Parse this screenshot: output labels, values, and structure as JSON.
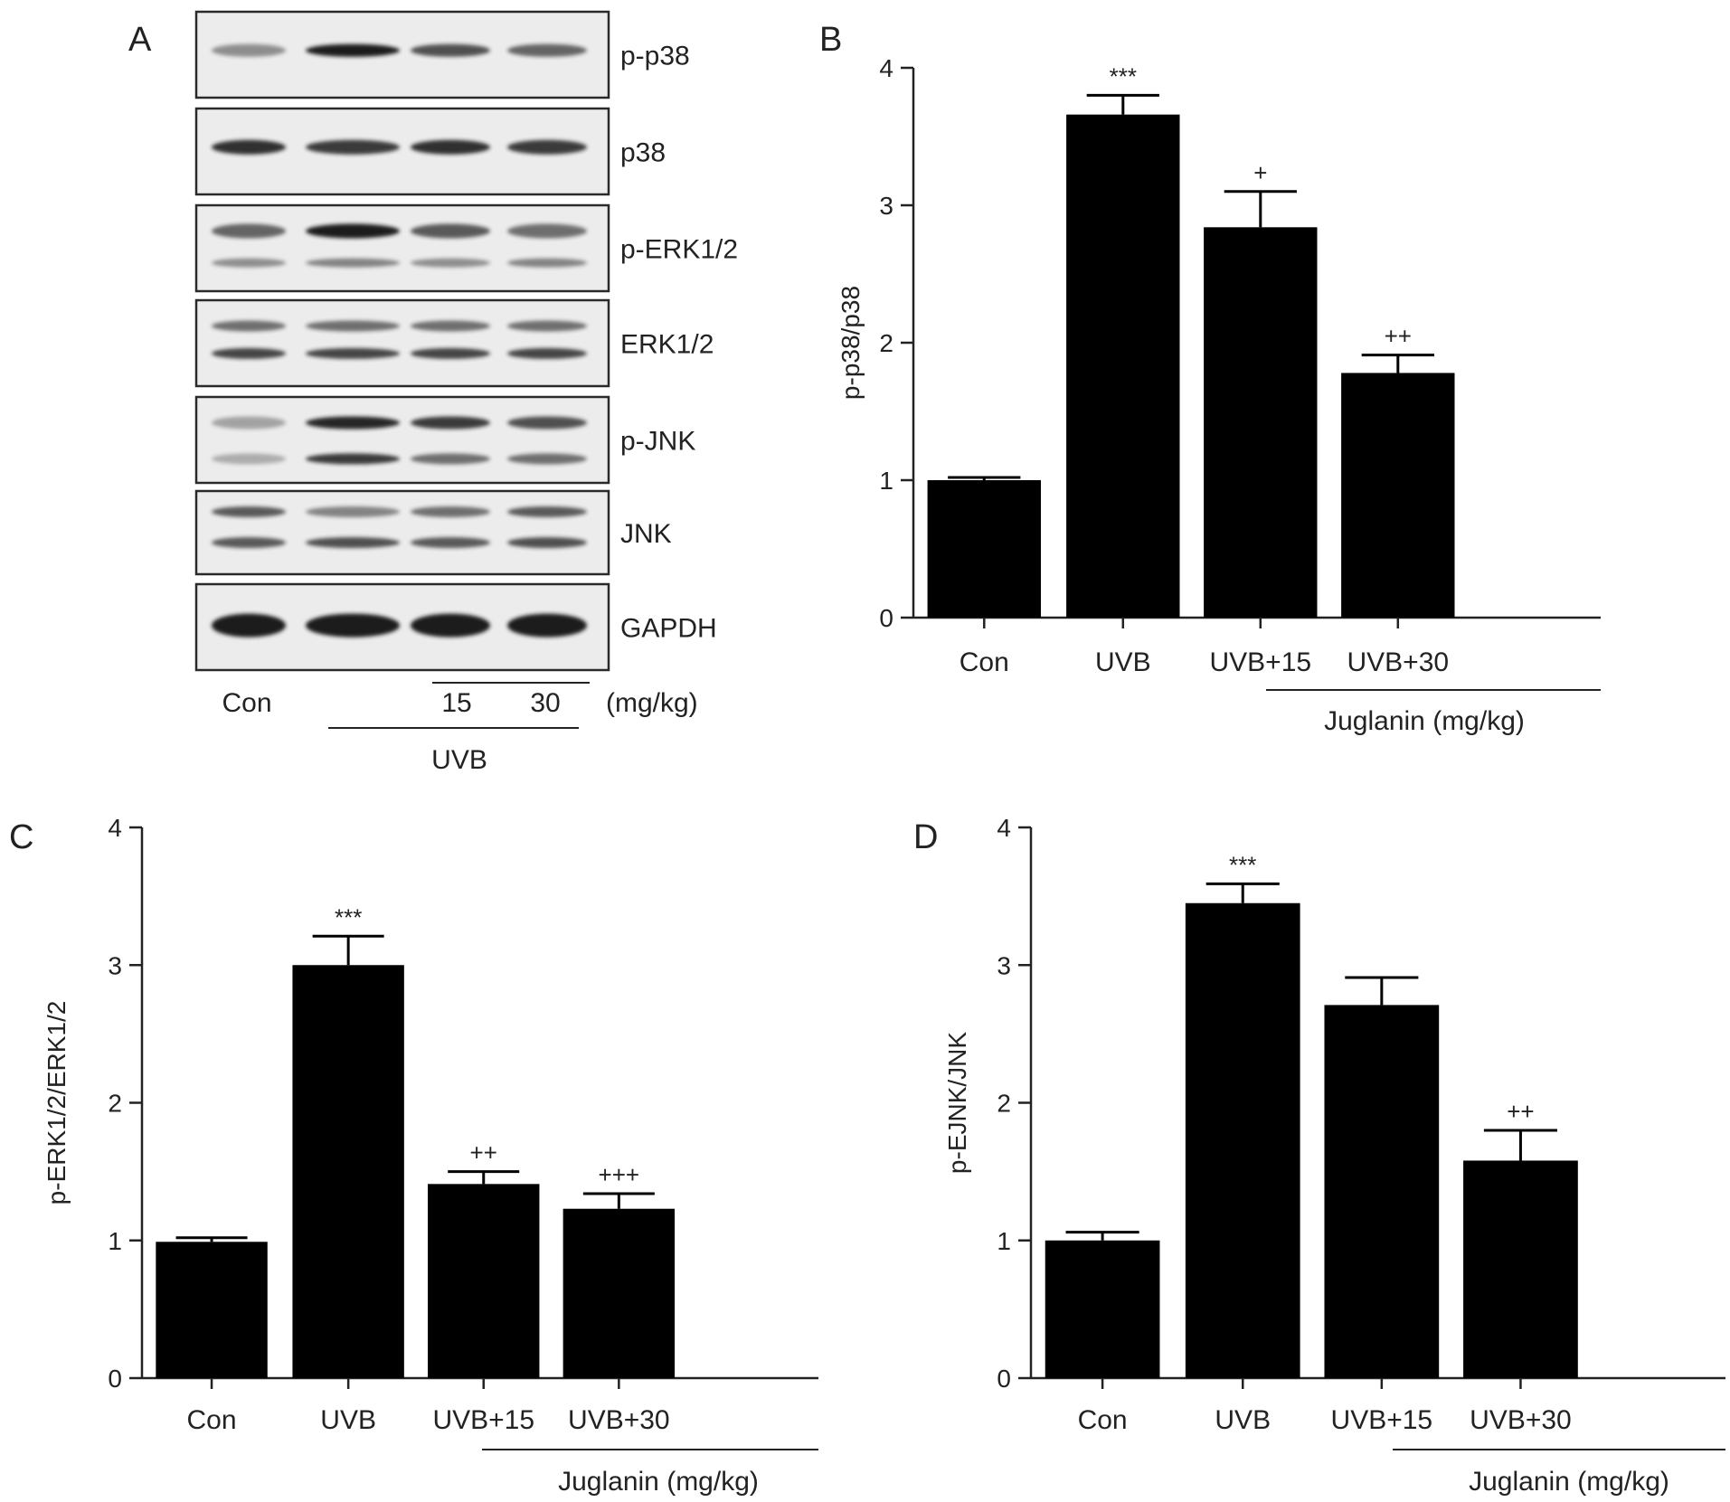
{
  "blot": {
    "panel_label": "A",
    "proteins": [
      "p-p38",
      "p38",
      "p-ERK1/2",
      "ERK1/2",
      "p-JNK",
      "JNK",
      "GAPDH"
    ],
    "lane_labels": {
      "control": "Con",
      "dose1": "15",
      "dose2": "30",
      "unit": "(mg/kg)",
      "group": "UVB"
    }
  },
  "chart_data": [
    {
      "panel_label": "B",
      "type": "bar",
      "categories": [
        "Con",
        "UVB",
        "UVB+15",
        "UVB+30"
      ],
      "values": [
        1.0,
        3.66,
        2.84,
        1.78
      ],
      "errors": [
        0.02,
        0.14,
        0.26,
        0.13
      ],
      "significance": [
        "",
        "***",
        "+",
        "++"
      ],
      "group_label": "Juglanin (mg/kg)",
      "xlabel": "",
      "ylabel": "p-p38/p38",
      "ylim": [
        0,
        4
      ],
      "yticks": [
        "0",
        "1",
        "2",
        "3",
        "4"
      ],
      "bar_color": "#000000",
      "grid": false
    },
    {
      "panel_label": "C",
      "type": "bar",
      "categories": [
        "Con",
        "UVB",
        "UVB+15",
        "UVB+30"
      ],
      "values": [
        0.99,
        3.0,
        1.41,
        1.23
      ],
      "errors": [
        0.03,
        0.21,
        0.09,
        0.11
      ],
      "significance": [
        "",
        "***",
        "++",
        "+++"
      ],
      "group_label": "Juglanin (mg/kg)",
      "xlabel": "",
      "ylabel": "p-ERK1/2/ERK1/2",
      "ylim": [
        0,
        4
      ],
      "yticks": [
        "0",
        "1",
        "2",
        "3",
        "4"
      ],
      "bar_color": "#000000",
      "grid": false
    },
    {
      "panel_label": "D",
      "type": "bar",
      "categories": [
        "Con",
        "UVB",
        "UVB+15",
        "UVB+30"
      ],
      "values": [
        1.0,
        3.45,
        2.71,
        1.58
      ],
      "errors": [
        0.06,
        0.14,
        0.2,
        0.22
      ],
      "significance": [
        "",
        "***",
        "",
        "++"
      ],
      "group_label": "Juglanin (mg/kg)",
      "xlabel": "",
      "ylabel": "p-EJNK/JNK",
      "ylim": [
        0,
        4
      ],
      "yticks": [
        "0",
        "1",
        "2",
        "3",
        "4"
      ],
      "bar_color": "#000000",
      "grid": false
    }
  ]
}
